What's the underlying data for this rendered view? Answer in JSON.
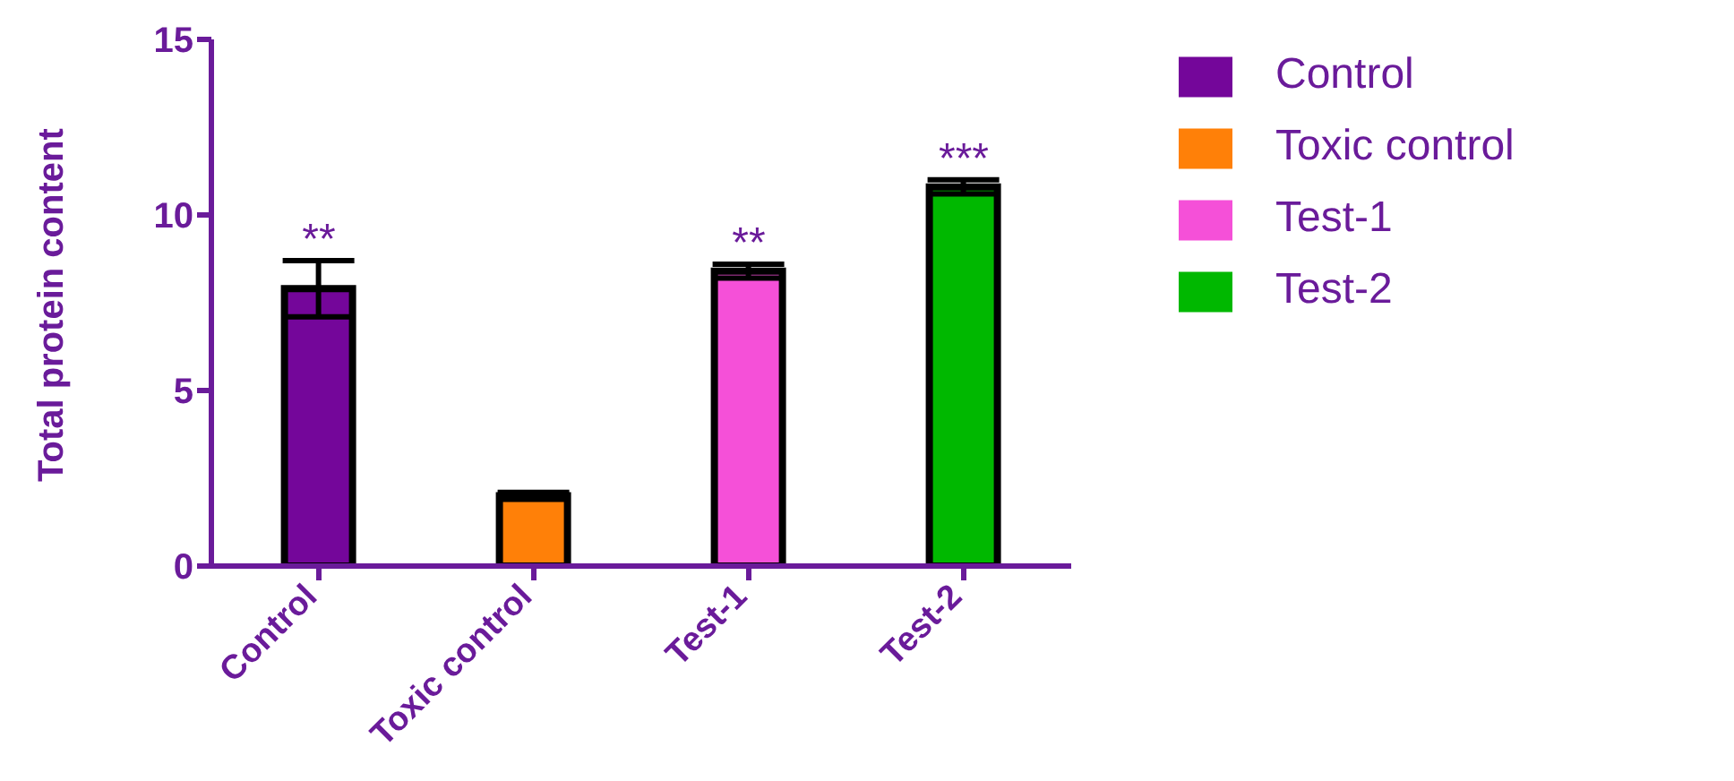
{
  "chart_data": {
    "type": "bar",
    "ylabel": "Total protein content",
    "categories": [
      "Control",
      "Toxic control",
      "Test-1",
      "Test-2"
    ],
    "series": [
      {
        "name": "Control",
        "color": "#74069a",
        "values": [
          7.9,
          null,
          null,
          null
        ],
        "errors": [
          0.8,
          null,
          null,
          null
        ]
      },
      {
        "name": "Toxic control",
        "color": "#ff8008",
        "values": [
          null,
          2.0,
          null,
          null
        ],
        "errors": [
          null,
          0.1,
          null,
          null
        ]
      },
      {
        "name": "Test-1",
        "color": "#f550d8",
        "values": [
          null,
          null,
          8.4,
          null
        ],
        "errors": [
          null,
          null,
          0.2,
          null
        ]
      },
      {
        "name": "Test-2",
        "color": "#00b800",
        "values": [
          null,
          null,
          null,
          10.8
        ],
        "errors": [
          null,
          null,
          null,
          0.2
        ]
      }
    ],
    "stacked": true,
    "ylim": [
      0,
      15
    ],
    "yticks": [
      0,
      5,
      10,
      15
    ],
    "grid": false,
    "legend": "right",
    "annotations": [
      {
        "text": "**",
        "x": "Control",
        "y": 8.7
      },
      {
        "text": "**",
        "x": "Test-1",
        "y": 8.6
      },
      {
        "text": "***",
        "x": "Test-2",
        "y": 11.0
      }
    ]
  }
}
